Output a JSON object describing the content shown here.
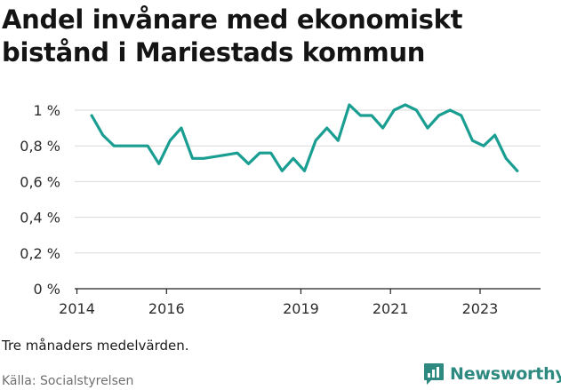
{
  "title": "Andel invånare med ekonomiskt bistånd i Mariestads kommun",
  "note": "Tre månaders medelvärden.",
  "source": "Källa: Socialstyrelsen",
  "brand": {
    "name": "Newsworthy",
    "icon": "newsworthy-logo-icon",
    "color": "#2e8a80"
  },
  "chart_data": {
    "type": "line",
    "title": "Andel invånare med ekonomiskt bistånd i Mariestads kommun",
    "xlabel": "",
    "ylabel": "",
    "color": "#1a9e92",
    "grid": true,
    "legend": "none",
    "x_ticks": [
      2014,
      2016,
      2019,
      2021,
      2023
    ],
    "x_tick_labels": [
      "2014",
      "2016",
      "2019",
      "2021",
      "2023"
    ],
    "y_ticks": [
      0,
      0.2,
      0.4,
      0.6,
      0.8,
      1.0
    ],
    "y_tick_labels": [
      "0 %",
      "0,2 %",
      "0,4 %",
      "0,6 %",
      "0,8 %",
      "1 %"
    ],
    "xlim": [
      2013.95,
      2024.35
    ],
    "ylim": [
      0,
      1.0
    ],
    "series": [
      {
        "x": [
          2014.33,
          2014.58,
          2014.83,
          2015.08,
          2015.33,
          2015.58,
          2015.83,
          2016.08,
          2016.33,
          2016.58,
          2016.83,
          2017.08,
          2017.33,
          2017.58,
          2017.83,
          2018.08,
          2018.33,
          2018.58,
          2018.83,
          2019.08,
          2019.33,
          2019.58,
          2019.83,
          2020.08,
          2020.33,
          2020.58,
          2020.83,
          2021.08,
          2021.33,
          2021.58,
          2021.83,
          2022.08,
          2022.33,
          2022.58,
          2022.83,
          2023.08,
          2023.33,
          2023.58,
          2023.83
        ],
        "values": [
          0.97,
          0.86,
          0.8,
          0.8,
          0.8,
          0.8,
          0.7,
          0.83,
          0.9,
          0.73,
          0.73,
          0.74,
          0.75,
          0.76,
          0.7,
          0.76,
          0.76,
          0.66,
          0.73,
          0.66,
          0.83,
          0.9,
          0.83,
          1.03,
          0.97,
          0.97,
          0.9,
          1.0,
          1.03,
          1.0,
          0.9,
          0.97,
          1.0,
          0.97,
          0.83,
          0.8,
          0.86,
          0.73,
          0.66
        ]
      }
    ]
  }
}
